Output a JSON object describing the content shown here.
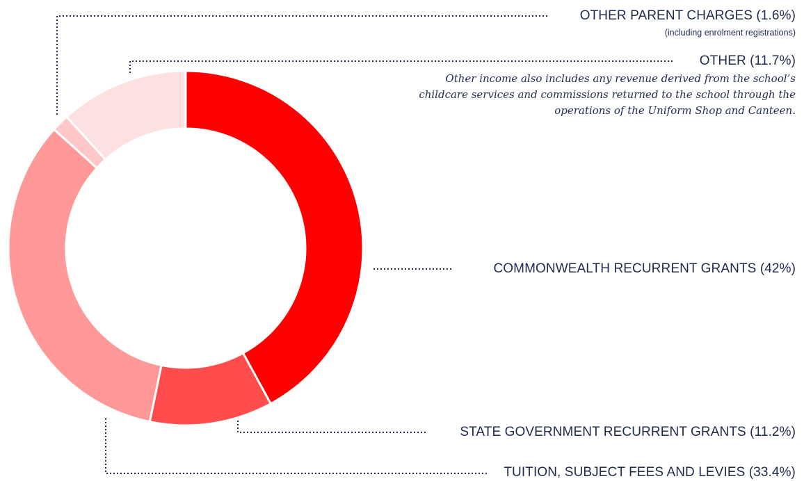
{
  "chart_data": {
    "type": "pie",
    "variant": "donut",
    "slices": [
      {
        "label": "COMMONWEALTH RECURRENT GRANTS (42%)",
        "value": 42,
        "color": "#ff0000"
      },
      {
        "label": "STATE GOVERNMENT RECURRENT GRANTS (11.2%)",
        "value": 11.2,
        "color": "#ff4d4d"
      },
      {
        "label": "TUITION, SUBJECT FEES AND LEVIES (33.4%)",
        "value": 33.4,
        "color": "#ff9999"
      },
      {
        "label": "OTHER PARENT CHARGES (1.6%)",
        "value": 1.6,
        "color": "#ffc7c7"
      },
      {
        "label": "OTHER (11.7%)",
        "value": 11.7,
        "color": "#ffe0e0"
      }
    ],
    "annotations": {
      "other_parent_charges_note": "(including enrolment registrations)",
      "other_note": "Other income also includes any revenue derived from the school’s childcare services and commissions returned to the school through the operations of the Uniform Shop and Canteen."
    }
  }
}
